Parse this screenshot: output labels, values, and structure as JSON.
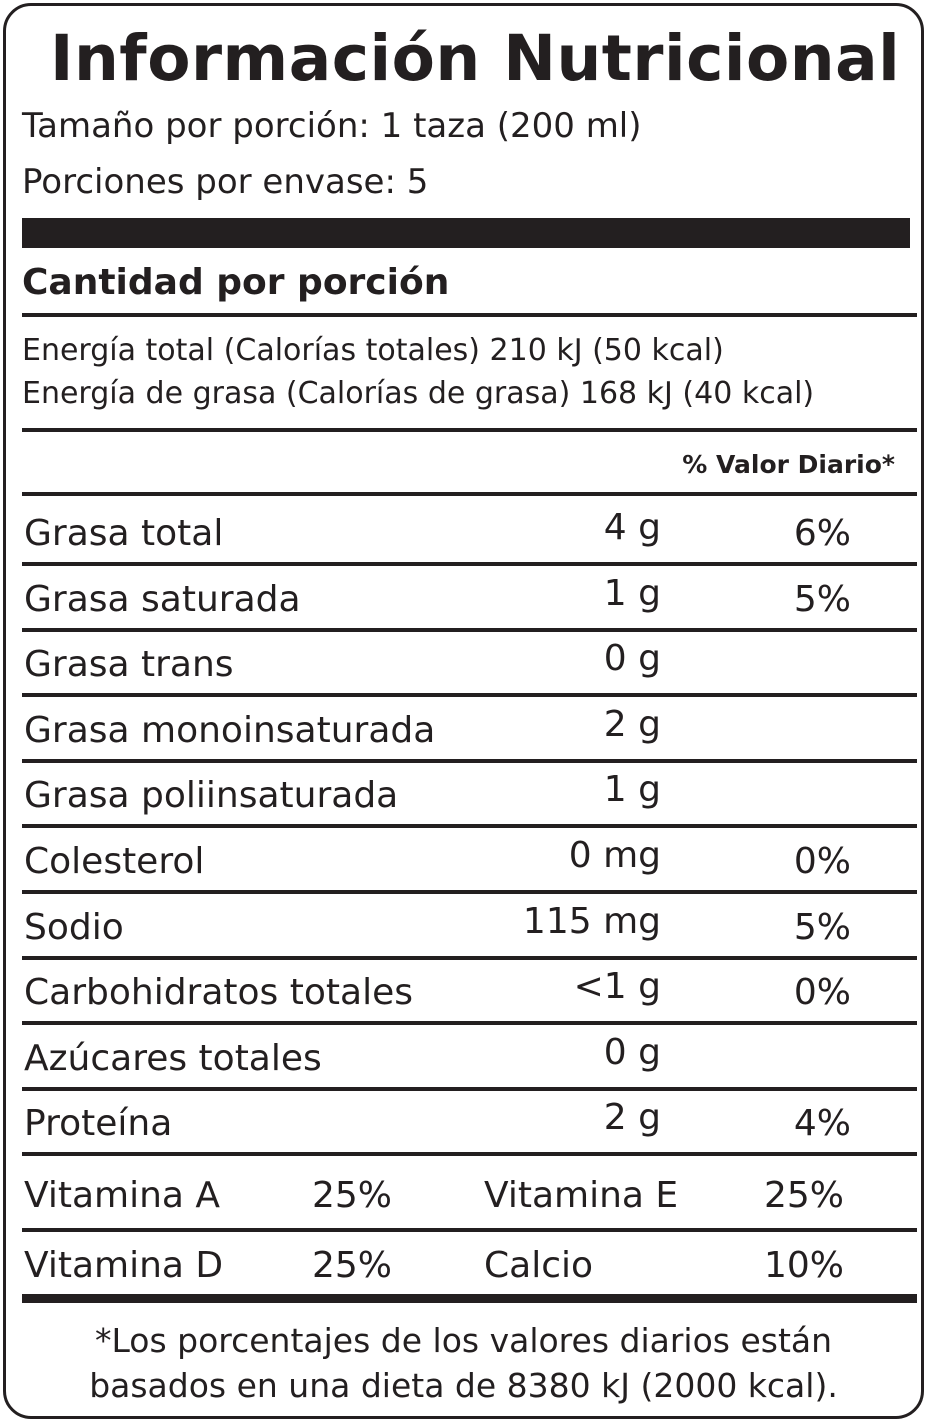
{
  "title": "Información Nutricional",
  "serving_size": "Tamaño por porción: 1 taza (200 ml)",
  "servings": "Porciones por envase: 5",
  "amount_header": "Cantidad por porción",
  "energy_total": "Energía total (Calorías totales) 210 kJ (50 kcal)",
  "energy_fat": "Energía de grasa (Calorías de grasa) 168 kJ (40 kcal)",
  "dv_header": "% Valor Diario*",
  "nutrients": [
    {
      "name": "Grasa total",
      "amount": "4 g",
      "dv": "6%"
    },
    {
      "name": "Grasa saturada",
      "amount": "1 g",
      "dv": "5%"
    },
    {
      "name": "Grasa trans",
      "amount": "0 g",
      "dv": ""
    },
    {
      "name": "Grasa monoinsaturada",
      "amount": "2 g",
      "dv": ""
    },
    {
      "name": "Grasa poliinsaturada",
      "amount": "1 g",
      "dv": ""
    },
    {
      "name": "Colesterol",
      "amount": "0 mg",
      "dv": "0%"
    },
    {
      "name": "Sodio",
      "amount": "115 mg",
      "dv": "5%"
    },
    {
      "name": "Carbohidratos totales",
      "amount": "<1 g",
      "dv": "0%"
    },
    {
      "name": "Azúcares totales",
      "amount": "0 g",
      "dv": ""
    },
    {
      "name": "Proteína",
      "amount": "2 g",
      "dv": "4%"
    }
  ],
  "vitamins": [
    [
      {
        "name": "Vitamina A",
        "dv": "25%"
      },
      {
        "name": "Vitamina E",
        "dv": "25%"
      }
    ],
    [
      {
        "name": "Vitamina D",
        "dv": "25%"
      },
      {
        "name": "Calcio",
        "dv": "10%"
      }
    ]
  ],
  "footnote_line1": "*Los porcentajes de los valores diarios están",
  "footnote_line2": "basados en una dieta de 8380 kJ (2000 kcal)."
}
